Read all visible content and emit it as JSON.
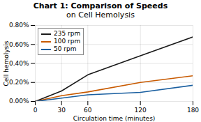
{
  "chart_data": {
    "type": "line",
    "title": "Chart 1: Comparison of Speeds",
    "subtitle": "on Cell Hemolysis",
    "x_label": "Circulation time (minutes)",
    "y_label": "Cell hemolysis",
    "x": [
      0,
      30,
      60,
      120,
      180
    ],
    "series": [
      {
        "name": "235 rpm",
        "color": "#1a1a1a",
        "values": [
          0.0,
          0.0011,
          0.0028,
          0.0048,
          0.0068
        ]
      },
      {
        "name": "100 rpm",
        "color": "#c85a00",
        "values": [
          0.0,
          0.0006,
          0.001,
          0.002,
          0.0027
        ]
      },
      {
        "name": "50 rpm",
        "color": "#1a5fa0",
        "values": [
          0.0,
          0.00035,
          0.0007,
          0.00095,
          0.0017
        ]
      }
    ],
    "xlim": [
      0,
      180
    ],
    "xticks": [
      0,
      30,
      60,
      120,
      180
    ],
    "ylim": [
      0.0,
      0.008
    ],
    "yticks": [
      {
        "value": 0.0,
        "label": "0.00%"
      },
      {
        "value": 0.002,
        "label": "0.20%"
      },
      {
        "value": 0.004,
        "label": "0.40%"
      },
      {
        "value": 0.006,
        "label": "0.60%"
      },
      {
        "value": 0.008,
        "label": "0.80%"
      }
    ],
    "grid": true,
    "legend": "upper left"
  }
}
